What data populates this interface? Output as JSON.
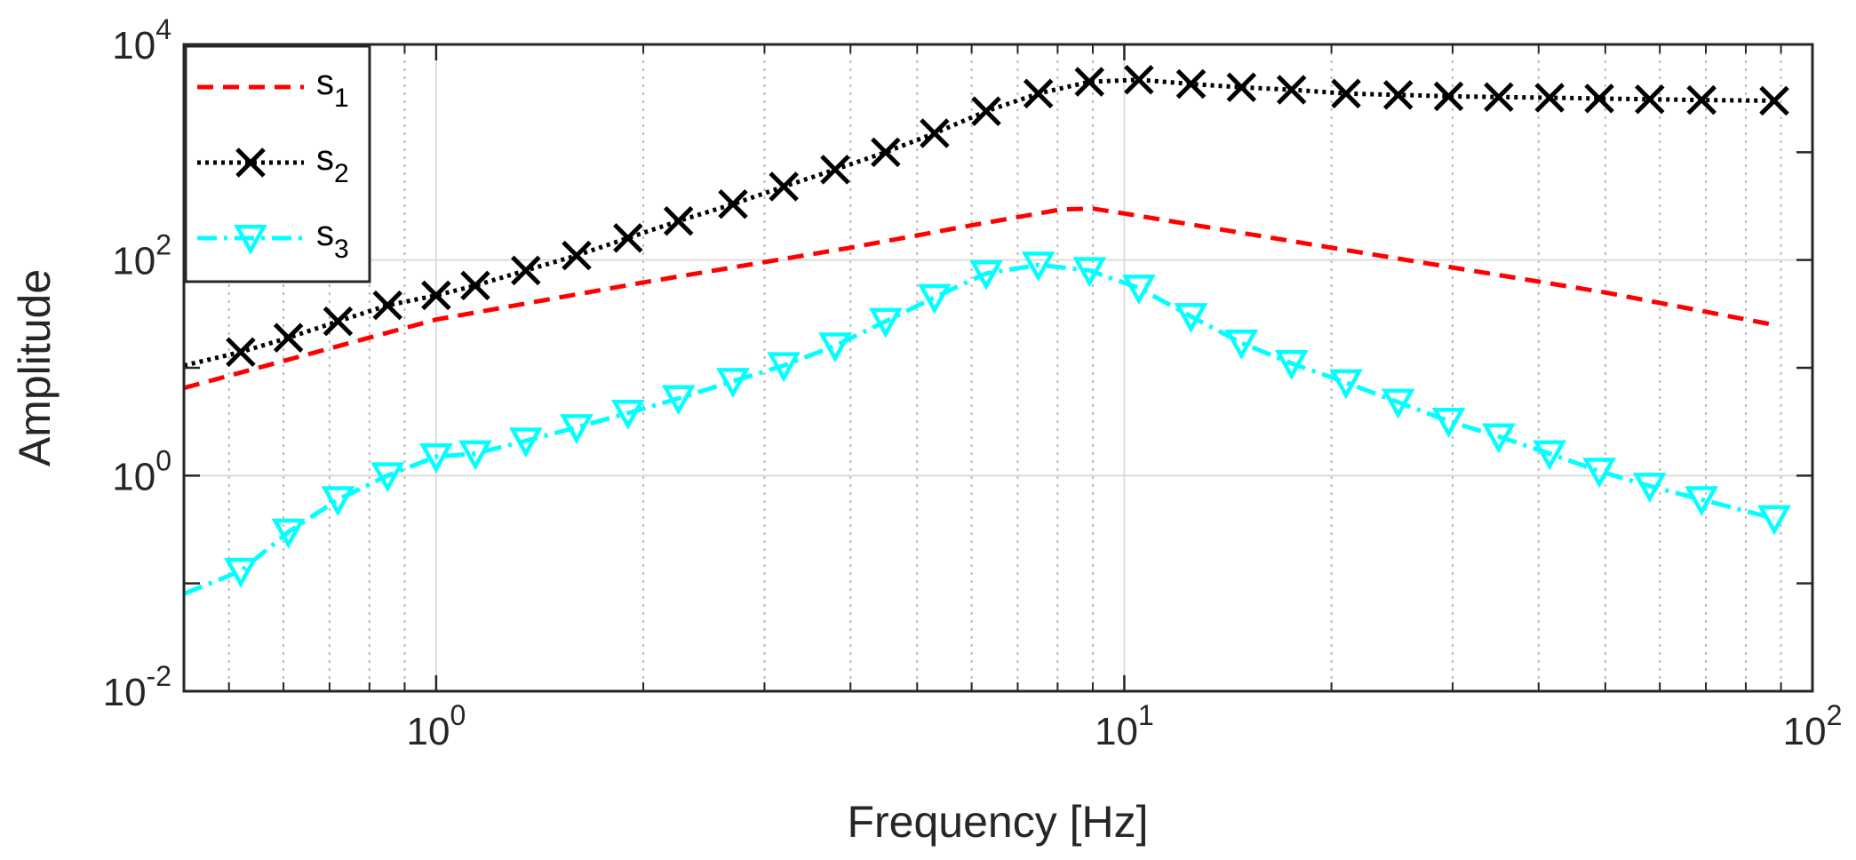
{
  "chart_data": {
    "type": "line",
    "title": "",
    "xlabel": "Frequency [Hz]",
    "ylabel": "Amplitude",
    "xscale": "log",
    "yscale": "log",
    "xlim": [
      0.43,
      100
    ],
    "ylim": [
      0.01,
      10000
    ],
    "grid": true,
    "legend_location": "top-left",
    "x_ticks": [
      {
        "value": 1,
        "base": "10",
        "exp": "0"
      },
      {
        "value": 10,
        "base": "10",
        "exp": "1"
      },
      {
        "value": 100,
        "base": "10",
        "exp": "2"
      }
    ],
    "y_ticks": [
      {
        "value": 0.01,
        "base": "10",
        "exp": "-2"
      },
      {
        "value": 1,
        "base": "10",
        "exp": "0"
      },
      {
        "value": 100,
        "base": "10",
        "exp": "2"
      },
      {
        "value": 10000,
        "base": "10",
        "exp": "4"
      }
    ],
    "series": [
      {
        "name": "s1",
        "label_base": "s",
        "label_sub": "1",
        "color": "#ff0000",
        "line": "dashed",
        "marker": "none",
        "x": [
          0.43,
          1.0,
          2.0,
          4.0,
          6.0,
          8.1,
          9.0,
          10.0,
          20.0,
          50.0,
          88.0
        ],
        "y": [
          6.5,
          28,
          62,
          130,
          210,
          295,
          300,
          270,
          130,
          50,
          25
        ]
      },
      {
        "name": "s2",
        "label_base": "s",
        "label_sub": "2",
        "color": "#000000",
        "line": "dotted",
        "marker": "x",
        "x": [
          0.43,
          0.52,
          0.61,
          0.72,
          0.85,
          1.0,
          1.14,
          1.35,
          1.6,
          1.9,
          2.25,
          2.7,
          3.2,
          3.8,
          4.5,
          5.3,
          6.3,
          7.5,
          8.9,
          10.5,
          12.5,
          14.8,
          17.5,
          21.0,
          25.0,
          29.6,
          35.0,
          41.5,
          49.0,
          58.0,
          69.0,
          88.0
        ],
        "y": [
          10.5,
          14,
          19,
          27,
          38,
          47,
          58,
          80,
          110,
          160,
          230,
          330,
          480,
          690,
          1000,
          1500,
          2400,
          3500,
          4500,
          4700,
          4300,
          4000,
          3800,
          3500,
          3400,
          3300,
          3250,
          3200,
          3150,
          3100,
          3050,
          3000
        ]
      },
      {
        "name": "s3",
        "label_base": "s",
        "label_sub": "3",
        "color": "#00ffff",
        "line": "dashdot",
        "marker": "triangle-down",
        "x": [
          0.43,
          0.52,
          0.61,
          0.72,
          0.85,
          1.0,
          1.14,
          1.35,
          1.6,
          1.9,
          2.25,
          2.7,
          3.2,
          3.8,
          4.5,
          5.3,
          6.3,
          7.5,
          8.9,
          10.5,
          12.5,
          14.8,
          17.5,
          21.0,
          25.0,
          29.6,
          35.0,
          41.5,
          49.0,
          58.0,
          69.0,
          88.0
        ],
        "y": [
          0.08,
          0.13,
          0.3,
          0.6,
          1.0,
          1.5,
          1.6,
          2.1,
          2.8,
          3.8,
          5.2,
          7.5,
          10.5,
          16,
          27,
          45,
          75,
          90,
          80,
          55,
          30,
          17,
          11,
          7.3,
          4.8,
          3.2,
          2.3,
          1.6,
          1.1,
          0.8,
          0.6,
          0.4
        ]
      }
    ]
  }
}
